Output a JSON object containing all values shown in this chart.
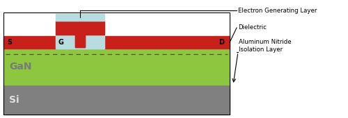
{
  "figsize": [
    5.0,
    1.7
  ],
  "dpi": 100,
  "bg_color": "#ffffff",
  "colors": {
    "si": "#808080",
    "gan": "#8dc63f",
    "algan_dielectric": "#b8dde0",
    "red_contact": "#c8201a",
    "black": "#000000",
    "dashed_line": "#666600",
    "gan_label": "#7a7a7a",
    "si_label": "#e0e0e0"
  },
  "labels": {
    "S": "S",
    "G": "G",
    "D": "D",
    "GaN": "GaN",
    "Si": "Si",
    "label1": "Electron Generating Layer",
    "label2": "Dielectric",
    "label3": "Aluminum Nitride\nIsolation Layer"
  }
}
